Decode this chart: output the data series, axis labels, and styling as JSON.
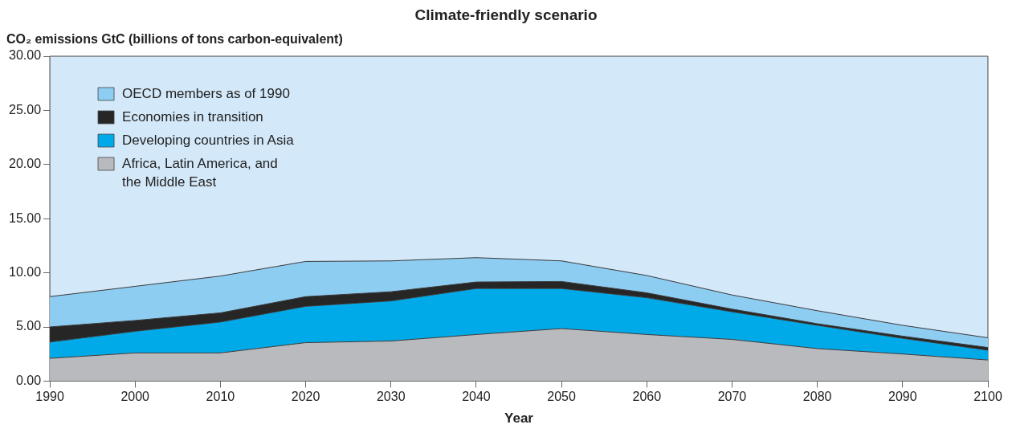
{
  "chart_data": {
    "type": "area",
    "title": "Climate-friendly scenario",
    "ylabel": "CO₂ emissions GtC (billions of tons carbon-equivalent)",
    "xlabel": "Year",
    "stacked": true,
    "x": [
      1990,
      2000,
      2010,
      2020,
      2030,
      2040,
      2050,
      2060,
      2070,
      2080,
      2090,
      2100
    ],
    "series": [
      {
        "name": "Africa, Latin America, and the Middle East",
        "color": "#b9babe",
        "values": [
          2.1,
          2.6,
          2.6,
          3.55,
          3.7,
          4.3,
          4.85,
          4.3,
          3.85,
          3.0,
          2.5,
          1.95
        ]
      },
      {
        "name": "Developing countries in Asia",
        "color": "#00aae8",
        "values": [
          1.5,
          2.0,
          2.85,
          3.35,
          3.7,
          4.25,
          3.7,
          3.4,
          2.55,
          2.15,
          1.45,
          0.9
        ]
      },
      {
        "name": "Economies in transition",
        "color": "#262626",
        "values": [
          1.4,
          1.0,
          0.85,
          0.9,
          0.85,
          0.6,
          0.65,
          0.45,
          0.25,
          0.15,
          0.2,
          0.25
        ]
      },
      {
        "name": "OECD members as of 1990",
        "color": "#8ecdf2",
        "values": [
          2.8,
          3.15,
          3.4,
          3.25,
          2.85,
          2.25,
          1.9,
          1.6,
          1.3,
          1.2,
          1.0,
          0.9
        ]
      }
    ],
    "xlim": [
      1990,
      2100
    ],
    "xticks": [
      1990,
      2000,
      2010,
      2020,
      2030,
      2040,
      2050,
      2060,
      2070,
      2080,
      2090,
      2100
    ],
    "ylim": [
      0,
      30
    ],
    "yticks": [
      {
        "value": 0,
        "label": "0.00"
      },
      {
        "value": 5,
        "label": "5.00"
      },
      {
        "value": 10,
        "label": "10.00"
      },
      {
        "value": 15,
        "label": "15.00"
      },
      {
        "value": 20,
        "label": "20.00"
      },
      {
        "value": 25,
        "label": "25.00"
      },
      {
        "value": 30,
        "label": "30.00"
      }
    ],
    "grid": false,
    "legend": "top left"
  }
}
